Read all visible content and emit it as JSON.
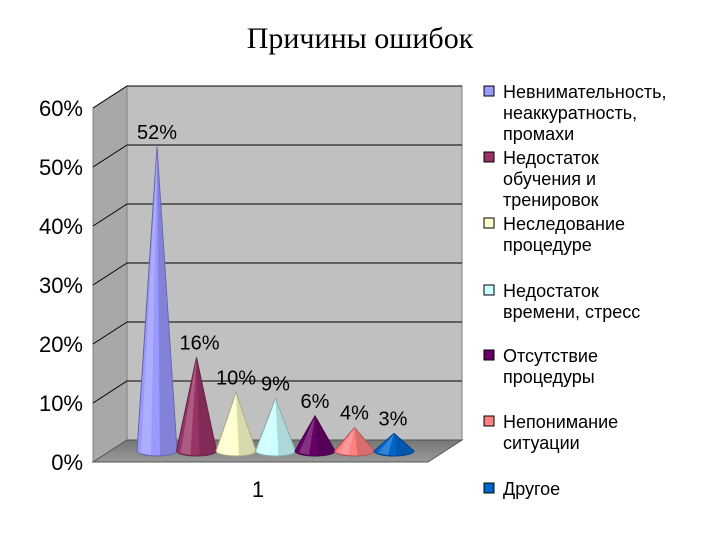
{
  "slide": {
    "title": "Причины ошибок"
  },
  "chart_data": {
    "type": "bar",
    "style": "3d-cone",
    "categories": [
      "1"
    ],
    "ylim": [
      0,
      0.6
    ],
    "y_ticks": [
      "0%",
      "10%",
      "20%",
      "30%",
      "40%",
      "50%",
      "60%"
    ],
    "grid": true,
    "legend_position": "right",
    "series": [
      {
        "name": "Невнимательность, неаккуратность, промахи",
        "legend_lines": [
          "Невнимательность,",
          "неаккуратность,",
          "промахи"
        ],
        "value": 0.52,
        "label": "52%",
        "color": "#9999ff"
      },
      {
        "name": "Недостаток обучения и тренировок",
        "legend_lines": [
          "Недостаток",
          "обучения и",
          "тренировок"
        ],
        "value": 0.16,
        "label": "16%",
        "color": "#993366"
      },
      {
        "name": "Неследование процедуре",
        "legend_lines": [
          "Неследование",
          "процедуре"
        ],
        "value": 0.1,
        "label": "10%",
        "color": "#ffffcc"
      },
      {
        "name": "Недостаток времени, стресс",
        "legend_lines": [
          "Недостаток",
          "времени, стресс"
        ],
        "value": 0.09,
        "label": "9%",
        "color": "#ccffff"
      },
      {
        "name": "Отсутствие процедуры",
        "legend_lines": [
          "Отсутствие",
          "процедуры"
        ],
        "value": 0.06,
        "label": "6%",
        "color": "#660066"
      },
      {
        "name": "Непонимание ситуации",
        "legend_lines": [
          "Непонимание",
          "ситуации"
        ],
        "value": 0.04,
        "label": "4%",
        "color": "#ff8080"
      },
      {
        "name": "Другое",
        "legend_lines": [
          "Другое"
        ],
        "value": 0.03,
        "label": "3%",
        "color": "#0066cc"
      }
    ]
  }
}
